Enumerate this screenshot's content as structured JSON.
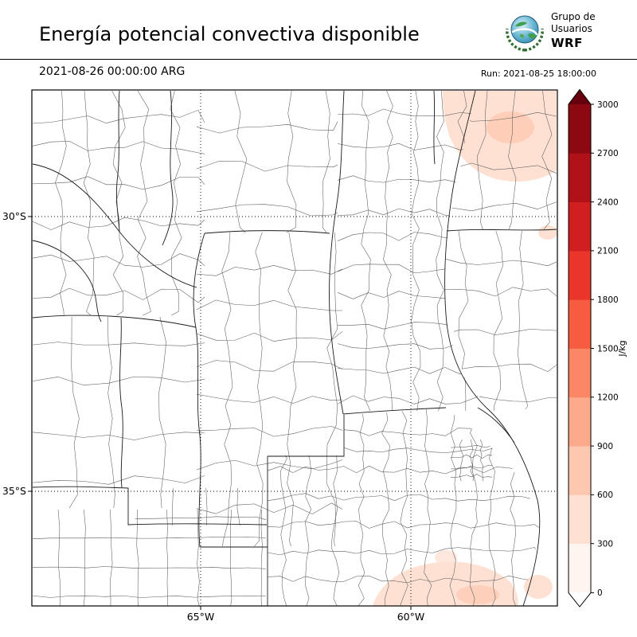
{
  "header": {
    "title": "Energía potencial convectiva disponible",
    "logo": {
      "line1": "Grupo de",
      "line2": "Usuarios",
      "line3": "WRF"
    }
  },
  "subheader": {
    "valid_time": "2021-08-26 00:00:00 ARG",
    "run": "Run: 2021-08-25 18:00:00"
  },
  "axes": {
    "lat_ticks": [
      "30°S",
      "35°S"
    ],
    "lon_ticks": [
      "65°W",
      "60°W"
    ]
  },
  "colorbar": {
    "unit": "J/kg",
    "ticks": [
      "0",
      "300",
      "600",
      "900",
      "1200",
      "1500",
      "1800",
      "2100",
      "2400",
      "2700",
      "3000"
    ],
    "segment_colors": [
      "#fff5f0",
      "#fee1d3",
      "#fdc7b0",
      "#fca98c",
      "#fc8767",
      "#f75b40",
      "#ea362a",
      "#d11e20",
      "#b1121a",
      "#8c0912"
    ],
    "over_color": "#67000d",
    "under_color": "#ffffff"
  },
  "chart_data": {
    "type": "heatmap",
    "title": "Energía potencial convectiva disponible",
    "variable": "CAPE (convective available potential energy)",
    "units": "J/kg",
    "valid_time": "2021-08-26 00:00:00 ARG",
    "run_time": "2021-08-25 18:00:00",
    "model": "WRF (Grupo de Usuarios WRF)",
    "colormap": "Reds",
    "levels": [
      0,
      300,
      600,
      900,
      1200,
      1500,
      1800,
      2100,
      2400,
      2700,
      3000
    ],
    "colorbar_extend": "both",
    "lat_ticks_deg": [
      -30,
      -35
    ],
    "lon_ticks_deg": [
      -65,
      -60
    ],
    "approx_extent": {
      "lon_deg_w": [
        69.0,
        56.5
      ],
      "lat_deg_s": [
        27.7,
        37.1
      ]
    },
    "field_summary": [
      {
        "region": "most of the domain (central Argentina)",
        "cape_j_kg": 0
      },
      {
        "region": "northeast corner of map (upper-right)",
        "cape_j_kg": "≈100–500 (light pink shading)"
      },
      {
        "region": "far right edge near 30°S",
        "cape_j_kg": "≈100–300 (small light patch)"
      },
      {
        "region": "southern Buenos Aires province / bottom edge",
        "cape_j_kg": "≈100–400 (light pink shading)"
      }
    ],
    "basemap": "Argentina province and department boundaries",
    "grid": "dotted graticule at 30°S, 35°S, 65°W, 60°W"
  }
}
